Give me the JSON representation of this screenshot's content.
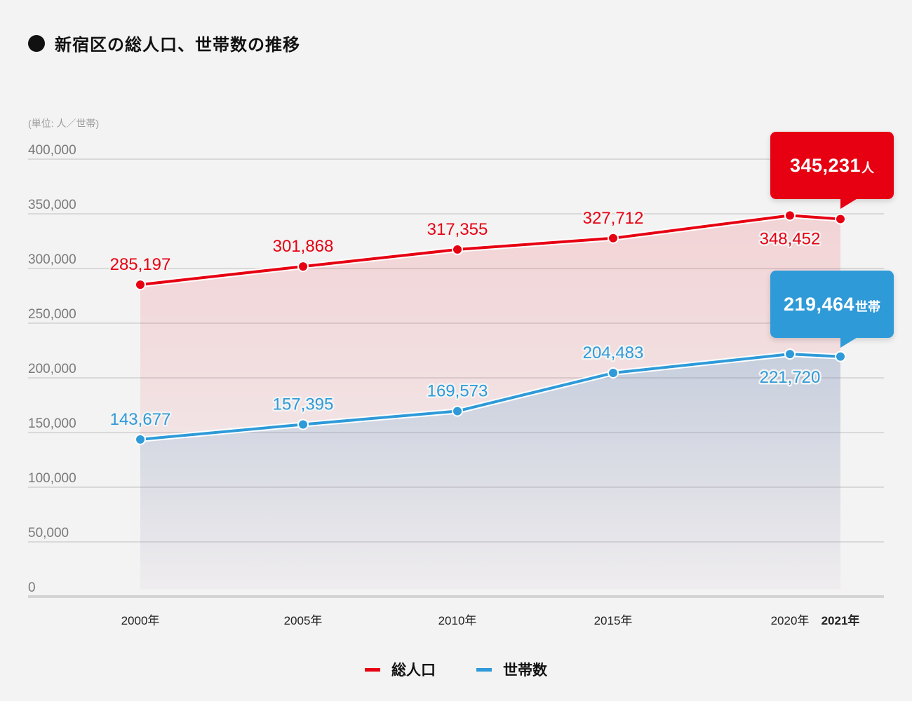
{
  "title": "新宿区の総人口、世帯数の推移",
  "unit_label": "(単位: 人／世帯)",
  "colors": {
    "population": "#e60012",
    "households": "#2f9ad8",
    "grid": "#d9d9d9",
    "highlight_year": "#e60012"
  },
  "callouts": {
    "population": {
      "value": "345,231",
      "suffix": "人"
    },
    "households": {
      "value": "219,464",
      "suffix": "世帯"
    }
  },
  "legend": [
    {
      "label": "総人口",
      "series": "population"
    },
    {
      "label": "世帯数",
      "series": "households"
    }
  ],
  "chart_data": {
    "type": "line",
    "title": "新宿区の総人口、世帯数の推移",
    "xlabel": "",
    "ylabel": "(単位: 人／世帯)",
    "categories": [
      "2000年",
      "2005年",
      "2010年",
      "2015年",
      "2020年",
      "2021年"
    ],
    "highlight_category": "2021年",
    "ylim": [
      0,
      400000
    ],
    "yticks": [
      0,
      50000,
      100000,
      150000,
      200000,
      250000,
      300000,
      350000,
      400000
    ],
    "ytick_labels": [
      "0",
      "50,000",
      "100,000",
      "150,000",
      "200,000",
      "250,000",
      "300,000",
      "350,000",
      "400,000"
    ],
    "grid": true,
    "legend_position": "bottom-center",
    "series": [
      {
        "name": "総人口",
        "key": "population",
        "values": [
          285197,
          301868,
          317355,
          327712,
          348452,
          345231
        ],
        "labels": [
          "285,197",
          "301,868",
          "317,355",
          "327,712",
          "348,452",
          "345,231人"
        ],
        "label_pos": [
          "above",
          "above",
          "above",
          "above",
          "below",
          "callout"
        ]
      },
      {
        "name": "世帯数",
        "key": "households",
        "values": [
          143677,
          157395,
          169573,
          204483,
          221720,
          219464
        ],
        "labels": [
          "143,677",
          "157,395",
          "169,573",
          "204,483",
          "221,720",
          "219,464世帯"
        ],
        "label_pos": [
          "above",
          "above",
          "above",
          "above",
          "below",
          "callout"
        ]
      }
    ]
  }
}
